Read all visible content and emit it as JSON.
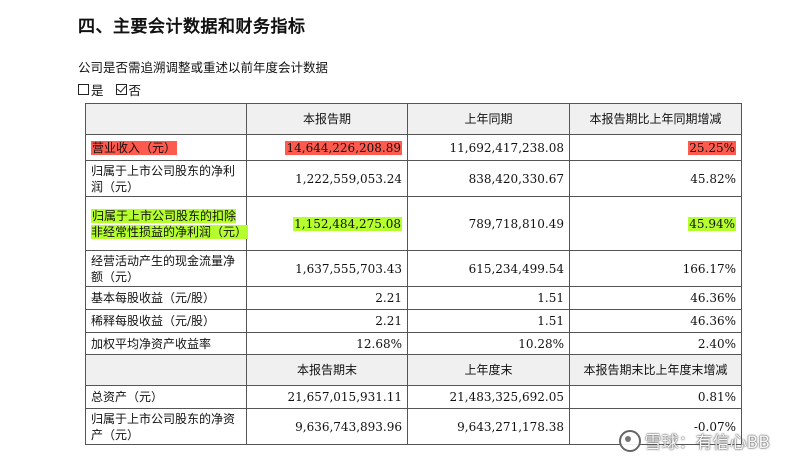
{
  "section_title": "四、主要会计数据和财务指标",
  "question": "公司是否需追溯调整或重述以前年度会计数据",
  "choices": [
    {
      "label": "是",
      "checked": false
    },
    {
      "label": "否",
      "checked": true
    }
  ],
  "table": {
    "header1": [
      "",
      "本报告期",
      "上年同期",
      "本报告期比上年同期增减"
    ],
    "rows1": [
      {
        "label": "营业收入（元）",
        "c1": "14,644,226,208.89",
        "c2": "11,692,417,238.08",
        "c3": "25.25%"
      },
      {
        "label": "归属于上市公司股东的净利润（元）",
        "c1": "1,222,559,053.24",
        "c2": "838,420,330.67",
        "c3": "45.82%"
      },
      {
        "label": "归属于上市公司股东的扣除非经常性损益的净利润（元）",
        "c1": "1,152,484,275.08",
        "c2": "789,718,810.49",
        "c3": "45.94%"
      },
      {
        "label": "经营活动产生的现金流量净额（元）",
        "c1": "1,637,555,703.43",
        "c2": "615,234,499.54",
        "c3": "166.17%"
      },
      {
        "label": "基本每股收益（元/股）",
        "c1": "2.21",
        "c2": "1.51",
        "c3": "46.36%"
      },
      {
        "label": "稀释每股收益（元/股）",
        "c1": "2.21",
        "c2": "1.51",
        "c3": "46.36%"
      },
      {
        "label": "加权平均净资产收益率",
        "c1": "12.68%",
        "c2": "10.28%",
        "c3": "2.40%"
      }
    ],
    "header2": [
      "",
      "本报告期末",
      "上年度末",
      "本报告期末比上年度末增减"
    ],
    "rows2": [
      {
        "label": "总资产（元）",
        "c1": "21,657,015,931.11",
        "c2": "21,483,325,692.05",
        "c3": "0.81%"
      },
      {
        "label": "归属于上市公司股东的净资产（元）",
        "c1": "9,636,743,893.96",
        "c2": "9,643,271,178.38",
        "c3": "-0.07%"
      }
    ]
  },
  "watermark": "雪球：有信心BB",
  "colors": {
    "highlight_red": "#ff5a4e",
    "highlight_green": "#b6ff2e",
    "header_bg": "#f0f0f0"
  }
}
